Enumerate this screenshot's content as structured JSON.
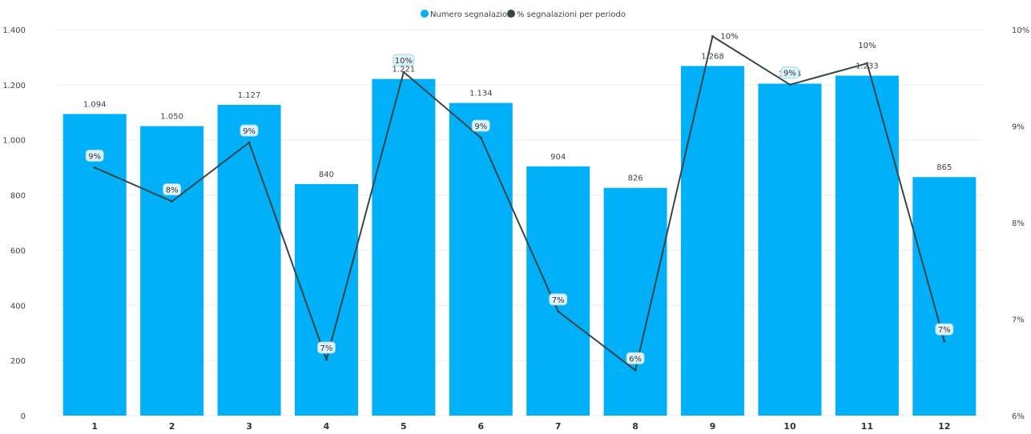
{
  "chart_data": {
    "type": "bar",
    "categories": [
      "1",
      "2",
      "3",
      "4",
      "5",
      "6",
      "7",
      "8",
      "9",
      "10",
      "11",
      "12"
    ],
    "series": [
      {
        "name": "Numero segnalazioni",
        "kind": "bar",
        "axis": "left",
        "color": "#00B0F8",
        "values": [
          1094,
          1050,
          1127,
          840,
          1221,
          1134,
          904,
          826,
          1268,
          1204,
          1233,
          865
        ],
        "labels": [
          "1.094",
          "1.050",
          "1.127",
          "840",
          "1.221",
          "1.134",
          "904",
          "826",
          "1.268",
          "1.204",
          "1.233",
          "865"
        ]
      },
      {
        "name": "% segnalazioni per periodo",
        "kind": "line",
        "axis": "right",
        "color": "#374649",
        "values": [
          8.57,
          8.22,
          8.83,
          6.58,
          9.56,
          8.88,
          7.08,
          6.47,
          9.93,
          9.43,
          9.65,
          6.77
        ],
        "labels": [
          "9%",
          "8%",
          "9%",
          "7%",
          "10%",
          "9%",
          "7%",
          "6%",
          "10%",
          "9%",
          "10%",
          "7%"
        ]
      }
    ],
    "y_left": {
      "ylim": [
        0,
        1400
      ],
      "ticks": [
        0,
        200,
        400,
        600,
        800,
        1000,
        1200,
        1400
      ],
      "tick_labels": [
        "0",
        "200",
        "400",
        "600",
        "800",
        "1.000",
        "1.200",
        "1.400"
      ]
    },
    "y_right": {
      "ylim": [
        6,
        10
      ],
      "ticks": [
        6,
        7,
        8,
        9,
        10
      ],
      "tick_labels": [
        "6%",
        "7%",
        "8%",
        "9%",
        "10%"
      ]
    },
    "grid": true,
    "legend": "top-center",
    "title": "",
    "xlabel": "",
    "ylabel": ""
  }
}
